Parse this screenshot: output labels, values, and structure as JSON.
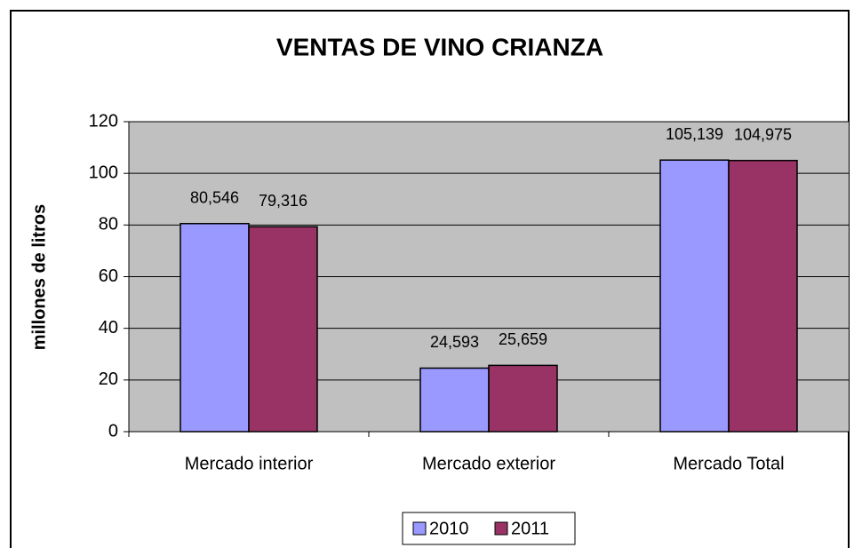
{
  "chart_data": {
    "type": "bar",
    "title": "VENTAS DE VINO CRIANZA",
    "y_label": "millones de litros",
    "categories": [
      "Mercado interior",
      "Mercado exterior",
      "Mercado Total"
    ],
    "series": [
      {
        "name": "2010",
        "color": "#9999ff",
        "values": [
          80.546,
          24.593,
          105.139
        ],
        "value_labels": [
          "80,546",
          "24,593",
          "105,139"
        ]
      },
      {
        "name": "2011",
        "color": "#993366",
        "values": [
          79.316,
          25.659,
          104.975
        ],
        "value_labels": [
          "79,316",
          "25,659",
          "104,975"
        ]
      }
    ],
    "ylim": [
      0,
      120
    ],
    "yticks": [
      0,
      20,
      40,
      60,
      80,
      100,
      120
    ],
    "grid": true,
    "legend": "bottom"
  }
}
